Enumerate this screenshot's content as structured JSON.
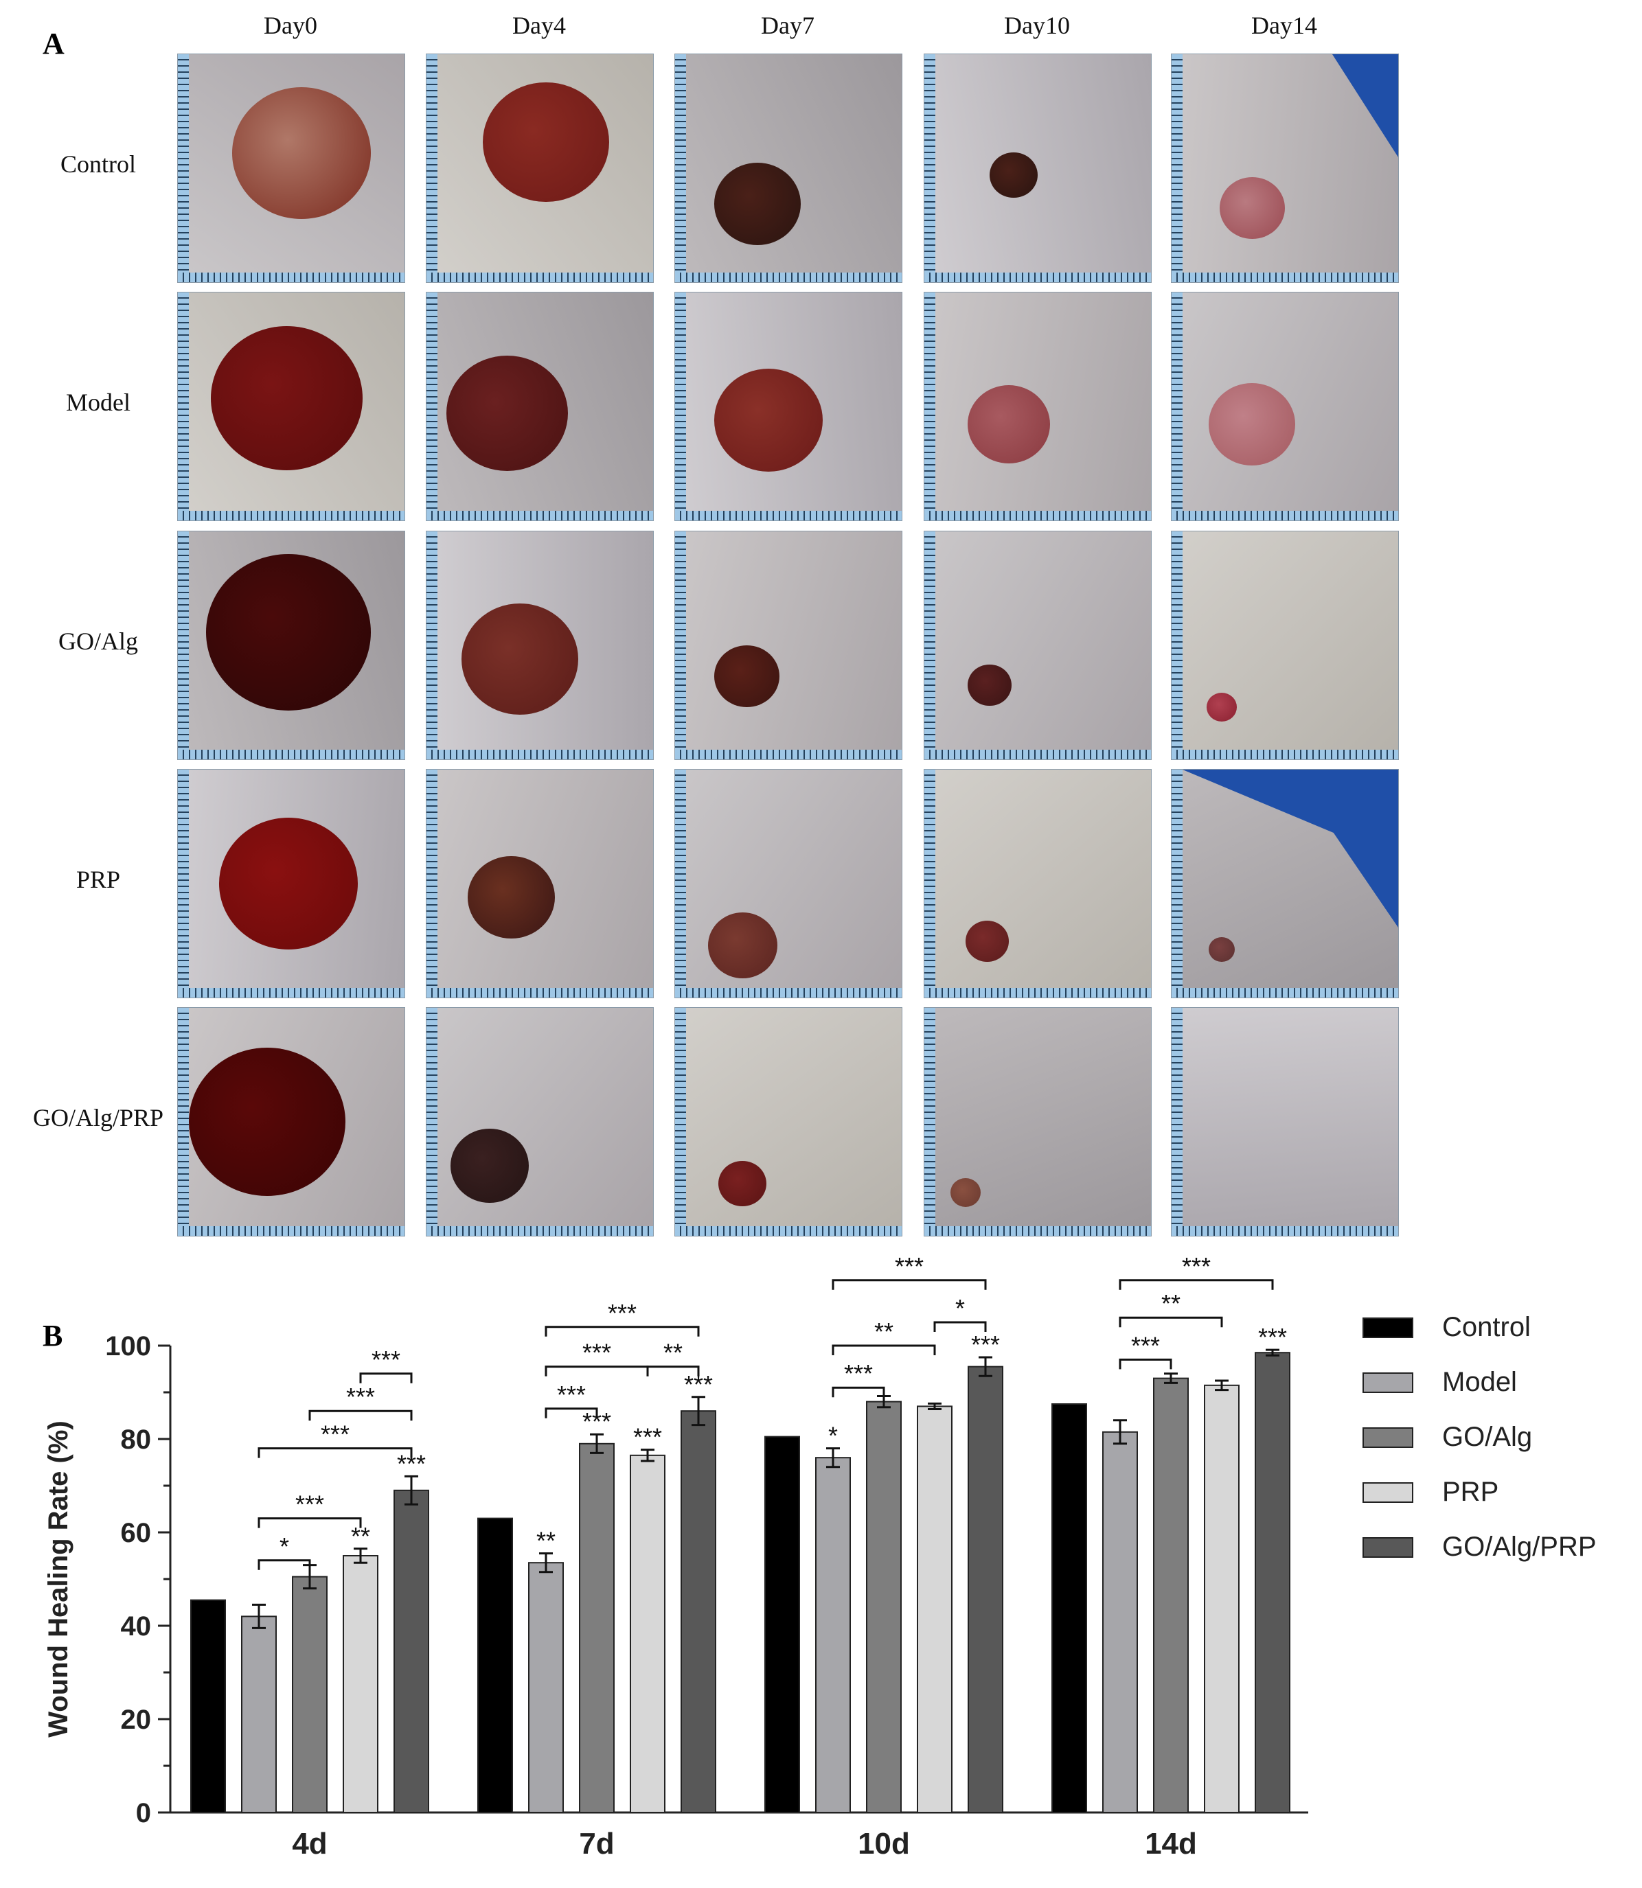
{
  "panel_a": {
    "letter": "A",
    "days": [
      "Day0",
      "Day4",
      "Day7",
      "Day10",
      "Day14"
    ],
    "groups": [
      "Control",
      "Model",
      "GO/Alg",
      "PRP",
      "GO/Alg/PRP"
    ]
  },
  "panel_b": {
    "letter": "B"
  },
  "chart_data": {
    "type": "bar",
    "title": "",
    "xlabel": "",
    "ylabel": "Wound Healing Rate (%)",
    "ylim": [
      0,
      100
    ],
    "yticks": [
      0,
      20,
      40,
      60,
      80,
      100
    ],
    "categories": [
      "4d",
      "7d",
      "10d",
      "14d"
    ],
    "series": [
      {
        "name": "Control",
        "color": "#000000",
        "values": [
          45.5,
          63,
          80.5,
          87.5
        ],
        "errors": [
          0,
          0,
          0,
          0
        ],
        "stars": [
          "",
          "",
          "",
          ""
        ]
      },
      {
        "name": "Model",
        "color": "#a6a6aa",
        "values": [
          42,
          53.5,
          76,
          81.5
        ],
        "errors": [
          2.5,
          2,
          2,
          2.5
        ],
        "stars": [
          "",
          "**",
          "*",
          ""
        ]
      },
      {
        "name": "GO/Alg",
        "color": "#7e7e7e",
        "values": [
          50.5,
          79,
          88,
          93
        ],
        "errors": [
          2.5,
          2,
          1.2,
          1
        ],
        "stars": [
          "",
          "***",
          "",
          ""
        ]
      },
      {
        "name": "PRP",
        "color": "#d7d7d7",
        "values": [
          55,
          76.5,
          87,
          91.5
        ],
        "errors": [
          1.5,
          1.2,
          0.6,
          1
        ],
        "stars": [
          "**",
          "***",
          "",
          ""
        ]
      },
      {
        "name": "GO/Alg/PRP",
        "color": "#585858",
        "values": [
          69,
          86,
          95.5,
          98.5
        ],
        "errors": [
          3,
          3,
          2,
          0.6
        ],
        "stars": [
          "***",
          "***",
          "***",
          "***"
        ]
      }
    ],
    "brackets": [
      {
        "group": 0,
        "from": 1,
        "to": 2,
        "label": "*",
        "level": 54
      },
      {
        "group": 0,
        "from": 1,
        "to": 3,
        "label": "***",
        "level": 63
      },
      {
        "group": 0,
        "from": 1,
        "to": 4,
        "label": "***",
        "level": 78
      },
      {
        "group": 0,
        "from": 2,
        "to": 4,
        "label": "***",
        "level": 86
      },
      {
        "group": 0,
        "from": 3,
        "to": 4,
        "label": "***",
        "level": 94
      },
      {
        "group": 1,
        "from": 1,
        "to": 2,
        "label": "***",
        "level": 86.5
      },
      {
        "group": 1,
        "from": 1,
        "to": 3,
        "label": "***",
        "level": 95.5
      },
      {
        "group": 1,
        "from": 3,
        "to": 4,
        "label": "**",
        "level": 95.5
      },
      {
        "group": 1,
        "from": 1,
        "to": 4,
        "label": "***",
        "level": 104
      },
      {
        "group": 2,
        "from": 1,
        "to": 2,
        "label": "***",
        "level": 91
      },
      {
        "group": 2,
        "from": 1,
        "to": 3,
        "label": "**",
        "level": 100
      },
      {
        "group": 2,
        "from": 3,
        "to": 4,
        "label": "*",
        "level": 105
      },
      {
        "group": 2,
        "from": 1,
        "to": 4,
        "label": "***",
        "level": 114
      },
      {
        "group": 3,
        "from": 1,
        "to": 2,
        "label": "***",
        "level": 97
      },
      {
        "group": 3,
        "from": 1,
        "to": 3,
        "label": "**",
        "level": 106
      },
      {
        "group": 3,
        "from": 1,
        "to": 4,
        "label": "***",
        "level": 114
      }
    ],
    "legend_position": "right",
    "grid": false
  }
}
